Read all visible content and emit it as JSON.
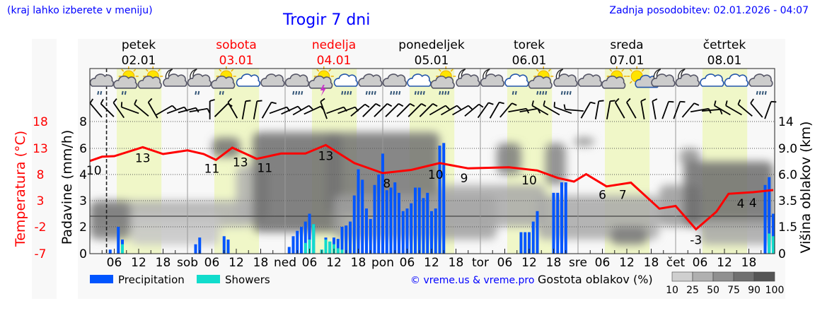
{
  "header": {
    "menu_hint": "(kraj lahko izberete v meniju)",
    "title": "Trogir 7 dni",
    "updated": "Zadnja posodobitev: 02.01.2026 - 04:07"
  },
  "days": [
    {
      "name": "petek",
      "date": "02.01",
      "color": "#000000"
    },
    {
      "name": "sobota",
      "date": "03.01",
      "color": "#ff0000"
    },
    {
      "name": "nedelja",
      "date": "04.01",
      "color": "#ff0000"
    },
    {
      "name": "ponedeljek",
      "date": "05.01",
      "color": "#000000"
    },
    {
      "name": "torek",
      "date": "06.01",
      "color": "#000000"
    },
    {
      "name": "sreda",
      "date": "07.01",
      "color": "#000000"
    },
    {
      "name": "četrtek",
      "date": "08.01",
      "color": "#000000"
    }
  ],
  "legend": {
    "precipitation": "Precipitation",
    "showers": "Showers",
    "copyright": "© vreme.us & vreme.pro",
    "cloud_density": "Gostota oblakov (%)",
    "density_ticks": [
      "10",
      "25",
      "50",
      "75",
      "90",
      "100"
    ]
  },
  "colors": {
    "precipitation": "#0055ff",
    "showers": "#11dccc",
    "temperature": "#ff0000",
    "daylight": "#f0f7c8"
  },
  "chart_data": {
    "type": "line+bar",
    "title": "Trogir 7 dni",
    "x_unit": "hours from 02.01 00:00",
    "xlim": [
      0,
      168
    ],
    "now_hour": 4.1,
    "x_ticks_hours": [
      "06",
      "12",
      "18"
    ],
    "day_abbr": [
      "sob",
      "ned",
      "pon",
      "tor",
      "sre",
      "čet"
    ],
    "left_axis": {
      "label": "Padavine (mm/h)",
      "ticks": [
        "0",
        "2",
        "3",
        "4",
        "6",
        "8"
      ]
    },
    "temp_axis": {
      "label": "Temperatura (°C)",
      "ticks": [
        "-7",
        "-2",
        "3",
        "8",
        "13",
        "18"
      ]
    },
    "right_axis": {
      "label": "Višina oblakov (km)",
      "ticks": [
        "0",
        "1.5",
        "3.5",
        "6.0",
        "9.0",
        "14"
      ]
    },
    "daylight_hours": [
      6.6,
      17.6
    ],
    "temperature": [
      [
        0,
        10.5
      ],
      [
        3,
        11.3
      ],
      [
        6,
        11.4
      ],
      [
        13,
        13.1
      ],
      [
        18,
        11.8
      ],
      [
        24,
        12.5
      ],
      [
        28,
        11.8
      ],
      [
        31,
        10.7
      ],
      [
        35,
        13.0
      ],
      [
        41,
        10.9
      ],
      [
        47,
        11.9
      ],
      [
        53,
        11.9
      ],
      [
        58,
        13.5
      ],
      [
        65,
        10.1
      ],
      [
        72,
        8.2
      ],
      [
        79,
        8.8
      ],
      [
        86,
        10.1
      ],
      [
        93,
        9.1
      ],
      [
        103,
        9.3
      ],
      [
        110,
        8.7
      ],
      [
        115,
        7.3
      ],
      [
        119,
        6.6
      ],
      [
        122,
        8.0
      ],
      [
        127,
        5.7
      ],
      [
        133,
        6.4
      ],
      [
        140,
        1.5
      ],
      [
        144,
        2.0
      ],
      [
        149,
        -2.4
      ],
      [
        154,
        0.9
      ],
      [
        157,
        4.3
      ],
      [
        163,
        4.6
      ],
      [
        168,
        5.0
      ]
    ],
    "temperature_labels": [
      [
        1,
        "10"
      ],
      [
        13,
        "13"
      ],
      [
        30,
        "11"
      ],
      [
        37,
        "13"
      ],
      [
        43,
        "11"
      ],
      [
        58,
        "13"
      ],
      [
        73,
        "8"
      ],
      [
        85,
        "10"
      ],
      [
        92,
        "9"
      ],
      [
        108,
        "10"
      ],
      [
        126,
        "6"
      ],
      [
        131,
        "7"
      ],
      [
        149,
        "-3"
      ],
      [
        160,
        "4"
      ],
      [
        163,
        "4"
      ]
    ],
    "precipitation": [
      [
        5,
        0.3,
        0
      ],
      [
        7,
        2.0,
        0
      ],
      [
        8,
        1.05,
        0.7
      ],
      [
        26,
        0.7,
        0
      ],
      [
        27,
        1.2,
        0
      ],
      [
        33,
        1.3,
        0
      ],
      [
        34,
        1.05,
        0
      ],
      [
        49,
        0.5,
        0
      ],
      [
        50,
        1.3,
        0
      ],
      [
        51,
        1.7,
        0
      ],
      [
        52,
        2.0,
        0
      ],
      [
        53,
        2.2,
        0.8
      ],
      [
        54,
        2.5,
        1.05
      ],
      [
        55,
        2.1,
        2.1
      ],
      [
        57,
        0.3,
        0.3
      ],
      [
        58,
        1.2,
        1.05
      ],
      [
        59,
        0.9,
        0.9
      ],
      [
        60,
        1.2,
        0.7
      ],
      [
        61,
        1.1,
        0.4
      ],
      [
        62,
        2.0,
        0.3
      ],
      [
        63,
        2.05,
        0
      ],
      [
        64,
        2.2,
        0
      ],
      [
        65,
        3.2,
        0
      ],
      [
        66,
        4.4,
        0
      ],
      [
        67,
        3.8,
        0
      ],
      [
        68,
        2.7,
        0
      ],
      [
        69,
        2.3,
        0
      ],
      [
        70,
        3.6,
        0
      ],
      [
        71,
        4.0,
        0
      ],
      [
        72,
        5.6,
        0
      ],
      [
        73,
        3.4,
        0
      ],
      [
        74,
        3.5,
        0
      ],
      [
        75,
        3.7,
        0
      ],
      [
        76,
        3.3,
        0
      ],
      [
        77,
        2.6,
        0
      ],
      [
        78,
        2.7,
        0
      ],
      [
        79,
        2.9,
        0
      ],
      [
        80,
        3.5,
        0
      ],
      [
        81,
        3.5,
        0
      ],
      [
        82,
        3.1,
        0
      ],
      [
        83,
        3.3,
        0
      ],
      [
        84,
        2.6,
        0
      ],
      [
        85,
        2.7,
        0
      ],
      [
        86,
        6.2,
        0
      ],
      [
        87,
        6.4,
        0
      ],
      [
        106,
        1.6,
        0
      ],
      [
        107,
        1.6,
        0
      ],
      [
        108,
        1.6,
        0
      ],
      [
        109,
        2.2,
        0
      ],
      [
        110,
        2.6,
        0
      ],
      [
        114,
        3.3,
        0
      ],
      [
        115,
        3.3,
        0
      ],
      [
        116,
        3.7,
        0
      ],
      [
        117,
        3.7,
        0
      ],
      [
        166,
        3.6,
        0
      ],
      [
        167,
        3.9,
        1.5
      ],
      [
        168,
        2.5,
        1.3
      ]
    ],
    "cloud_layers": [
      {
        "h": [
          0,
          40
        ],
        "km": [
          1.5,
          3.5
        ],
        "density": 40
      },
      {
        "h": [
          10,
          32
        ],
        "km": [
          0.5,
          2.5
        ],
        "density": 25
      },
      {
        "h": [
          0,
          10
        ],
        "km": [
          0.8,
          3.5
        ],
        "density": 75
      },
      {
        "h": [
          30,
          37
        ],
        "km": [
          8,
          11
        ],
        "density": 80
      },
      {
        "h": [
          36,
          44
        ],
        "km": [
          2,
          7
        ],
        "density": 40
      },
      {
        "h": [
          40,
          62
        ],
        "km": [
          1.2,
          12
        ],
        "density": 85
      },
      {
        "h": [
          58,
          86
        ],
        "km": [
          2.5,
          12
        ],
        "density": 80
      },
      {
        "h": [
          60,
          100
        ],
        "km": [
          0.8,
          4
        ],
        "density": 50
      },
      {
        "h": [
          86,
          112
        ],
        "km": [
          1.5,
          5
        ],
        "density": 45
      },
      {
        "h": [
          100,
          106
        ],
        "km": [
          6,
          10
        ],
        "density": 75
      },
      {
        "h": [
          112,
          117
        ],
        "km": [
          5,
          10
        ],
        "density": 70
      },
      {
        "h": [
          119,
          124
        ],
        "km": [
          9.5,
          11
        ],
        "density": 65
      },
      {
        "h": [
          110,
          140
        ],
        "km": [
          0.8,
          4
        ],
        "density": 45
      },
      {
        "h": [
          128,
          137
        ],
        "km": [
          0.5,
          1.5
        ],
        "density": 75
      },
      {
        "h": [
          145,
          150
        ],
        "km": [
          7,
          9
        ],
        "density": 60
      },
      {
        "h": [
          140,
          150
        ],
        "km": [
          1.5,
          5
        ],
        "density": 55
      },
      {
        "h": [
          146,
          168
        ],
        "km": [
          1.5,
          7.5
        ],
        "density": 85
      },
      {
        "h": [
          150,
          168
        ],
        "km": [
          0.5,
          2
        ],
        "density": 45
      }
    ],
    "weather_icons": [
      "cloud-light-rain",
      "sun-cloud-light-rain",
      "sun-cloud",
      "moon-cloud",
      "moon-cloud-light-rain",
      "sun-cloud-light-rain",
      "cloudy",
      "overcast",
      "overcast-rain",
      "sun-thunderstorm",
      "cloudy-rain",
      "overcast-rain",
      "overcast-rain",
      "cloudy-rain",
      "sun-cloud-rain",
      "moon-cloud",
      "moon-cloud",
      "cloudy-light-rain",
      "sun-cloud-rain",
      "moon-cloud-rain",
      "overcast",
      "sun-cloud",
      "sun-small-cloud",
      "moon-cloud",
      "moon-cloud",
      "cloudy",
      "cloudy",
      "overcast-rain"
    ],
    "wind_dir_deg": [
      -40,
      -45,
      -35,
      -70,
      -50,
      -30,
      60,
      70,
      75,
      80,
      0,
      45,
      -30,
      10,
      10,
      30,
      70,
      65,
      60,
      65,
      -20,
      70,
      70,
      50,
      45,
      45,
      45,
      45,
      45,
      45,
      60,
      60,
      60,
      50,
      35,
      30,
      40,
      80,
      80,
      -60,
      -60,
      -70,
      -85,
      30,
      10,
      10,
      -30,
      -30,
      -10,
      -10,
      20,
      20,
      40,
      80,
      85,
      -60,
      -60,
      -50,
      -40,
      20
    ]
  }
}
